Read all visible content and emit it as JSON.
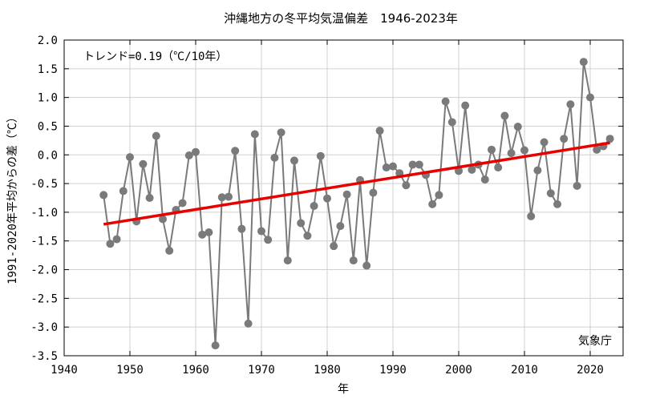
{
  "chart_data": {
    "type": "line",
    "title": "沖縄地方の冬平均気温偏差　1946-2023年",
    "xlabel": "年",
    "ylabel": "1991-2020年平均からの差（℃）",
    "trend_label": "トレンド=0.19（℃/10年）",
    "source_label": "気象庁",
    "xlim": [
      1940,
      2025
    ],
    "ylim": [
      -3.5,
      2.0
    ],
    "grid": true,
    "x_ticks": [
      1940,
      1950,
      1960,
      1970,
      1980,
      1990,
      2000,
      2010,
      2020
    ],
    "y_ticks": [
      "2.0",
      "1.5",
      "1.0",
      "0.5",
      "0.0",
      "-0.5",
      "-1.0",
      "-1.5",
      "-2.0",
      "-2.5",
      "-3.0",
      "-3.5"
    ],
    "colors": {
      "series": "#7a7a7a",
      "trend": "#e60000",
      "grid": "#d0d0d0"
    },
    "series": [
      {
        "x": [
          1946,
          1947,
          1948,
          1949,
          1950,
          1951,
          1952,
          1953,
          1954,
          1955,
          1956,
          1957,
          1958,
          1959,
          1960,
          1961,
          1962,
          1963,
          1964,
          1965,
          1966,
          1967,
          1968,
          1969,
          1970,
          1971,
          1972,
          1973,
          1974,
          1975,
          1976,
          1977,
          1978,
          1979,
          1980,
          1981,
          1982,
          1983,
          1984,
          1985,
          1986,
          1987,
          1988,
          1989,
          1990,
          1991,
          1992,
          1993,
          1994,
          1995,
          1996,
          1997,
          1998,
          1999,
          2000,
          2001,
          2002,
          2003,
          2004,
          2005,
          2006,
          2007,
          2008,
          2009,
          2010,
          2011,
          2012,
          2013,
          2014,
          2015,
          2016,
          2017,
          2018,
          2019,
          2020,
          2021,
          2022,
          2023
        ],
        "values": [
          -0.7,
          -1.55,
          -1.47,
          -0.63,
          -0.04,
          -1.16,
          -0.16,
          -0.75,
          0.33,
          -1.12,
          -1.67,
          -0.96,
          -0.84,
          -0.01,
          0.05,
          -1.39,
          -1.35,
          -3.32,
          -0.74,
          -0.73,
          0.07,
          -1.29,
          -2.94,
          0.36,
          -1.33,
          -1.48,
          -0.05,
          0.39,
          -1.84,
          -0.1,
          -1.19,
          -1.41,
          -0.89,
          -0.02,
          -0.76,
          -1.59,
          -1.24,
          -0.69,
          -1.84,
          -0.44,
          -1.93,
          -0.66,
          0.42,
          -0.22,
          -0.2,
          -0.32,
          -0.53,
          -0.17,
          -0.17,
          -0.35,
          -0.86,
          -0.7,
          0.93,
          0.57,
          -0.28,
          0.86,
          -0.26,
          -0.17,
          -0.43,
          0.09,
          -0.22,
          0.68,
          0.03,
          0.49,
          0.08,
          -1.07,
          -0.27,
          0.22,
          -0.67,
          -0.86,
          0.28,
          0.88,
          -0.54,
          1.62,
          1.0,
          0.09,
          0.15,
          0.28
        ]
      }
    ],
    "trend": {
      "x": [
        1946,
        2023
      ],
      "y": [
        -1.21,
        0.21
      ]
    }
  }
}
